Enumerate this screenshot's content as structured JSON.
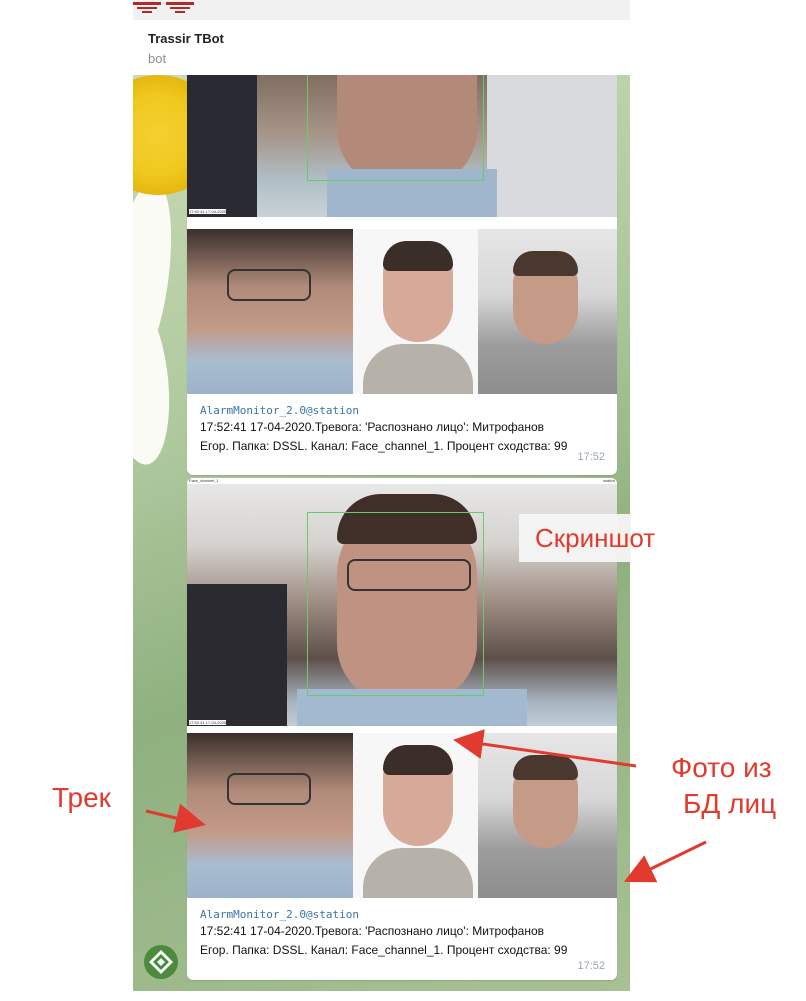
{
  "colors": {
    "accent_red": "#e03b2e",
    "sender_blue": "#3a75a8",
    "time_gray": "#9aa7b2",
    "bubble": "#ffffff"
  },
  "header": {
    "chat_title": "Trassir TBot",
    "chat_subtitle": "bot",
    "logo_icon": "trassir-logo-icon"
  },
  "messages": [
    {
      "frame_stamp": "17:52:41 17-04-2020",
      "sender": "AlarmMonitor_2.0@station",
      "line1": "17:52:41 17-04-2020.Тревога: 'Распознано лицо': Митрофанов",
      "line2": "Егор. Папка: DSSL. Канал: Face_channel_1. Процент сходства: 99",
      "time": "17:52"
    },
    {
      "frame_top_left": "Face_channel_1",
      "frame_top_right": "station",
      "frame_stamp": "17:52:41 17-04-2020",
      "sender": "AlarmMonitor_2.0@station",
      "line1": "17:52:41 17-04-2020.Тревога: 'Распознано лицо': Митрофанов",
      "line2": "Егор. Папка: DSSL. Канал: Face_channel_1. Процент сходства: 99",
      "time": "17:52"
    }
  ],
  "annotations": {
    "screenshot_label": "Скриншот",
    "track_label": "Трек",
    "db_photo_line1": "Фото из",
    "db_photo_line2": "БД лиц"
  },
  "avatar_icon": "bot-avatar-icon"
}
